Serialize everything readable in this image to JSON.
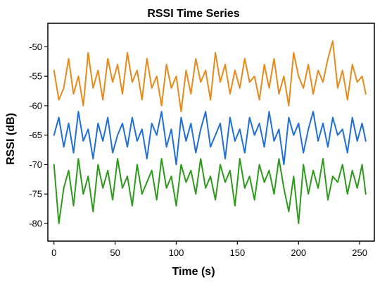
{
  "chart_data": {
    "type": "line",
    "title": "RSSI  Time Series",
    "xlabel": "Time (s)",
    "ylabel": "RSSI  (dB)",
    "xlim": [
      -5,
      262
    ],
    "ylim": [
      -83,
      -46
    ],
    "x_ticks": [
      0,
      50,
      100,
      150,
      200,
      250
    ],
    "y_ticks": [
      -50,
      -55,
      -60,
      -65,
      -70,
      -75,
      -80
    ],
    "grid": false,
    "legend": "none",
    "x": [
      0,
      4,
      8,
      12,
      16,
      20,
      24,
      28,
      32,
      36,
      40,
      44,
      48,
      52,
      56,
      60,
      64,
      68,
      72,
      76,
      80,
      84,
      88,
      92,
      96,
      100,
      104,
      108,
      112,
      116,
      120,
      124,
      128,
      132,
      136,
      140,
      144,
      148,
      152,
      156,
      160,
      164,
      168,
      172,
      176,
      180,
      184,
      188,
      192,
      196,
      200,
      204,
      208,
      212,
      216,
      220,
      224,
      228,
      232,
      236,
      240,
      244,
      248,
      252,
      255
    ],
    "series": [
      {
        "color": "#e8891a",
        "values": [
          -54,
          -59,
          -57,
          -52,
          -58,
          -55,
          -60,
          -51,
          -57,
          -54,
          -59,
          -52,
          -56,
          -53,
          -58,
          -51,
          -56,
          -54,
          -59,
          -52,
          -57,
          -55,
          -60,
          -53,
          -57,
          -55,
          -61,
          -54,
          -58,
          -52,
          -56,
          -54,
          -59,
          -51,
          -56,
          -53,
          -58,
          -54,
          -57,
          -52,
          -56,
          -55,
          -59,
          -53,
          -57,
          -52,
          -58,
          -55,
          -60,
          -51,
          -55,
          -57,
          -53,
          -58,
          -54,
          -56,
          -52,
          -49,
          -57,
          -54,
          -59,
          -53,
          -56,
          -55,
          -58
        ]
      },
      {
        "color": "#1f6fd6",
        "values": [
          -65,
          -62,
          -67,
          -63,
          -68,
          -61,
          -66,
          -64,
          -69,
          -63,
          -66,
          -62,
          -68,
          -65,
          -63,
          -67,
          -62,
          -66,
          -64,
          -69,
          -63,
          -65,
          -61,
          -67,
          -64,
          -70,
          -62,
          -66,
          -63,
          -68,
          -64,
          -61,
          -67,
          -65,
          -63,
          -69,
          -62,
          -66,
          -64,
          -68,
          -62,
          -65,
          -63,
          -67,
          -61,
          -66,
          -64,
          -70,
          -62,
          -65,
          -63,
          -68,
          -64,
          -61,
          -66,
          -63,
          -67,
          -62,
          -65,
          -64,
          -68,
          -62,
          -66,
          -63,
          -66
        ]
      },
      {
        "color": "#2e9a1c",
        "values": [
          -70,
          -80,
          -74,
          -71,
          -77,
          -69,
          -75,
          -72,
          -78,
          -70,
          -74,
          -71,
          -76,
          -69,
          -74,
          -72,
          -77,
          -70,
          -75,
          -73,
          -71,
          -76,
          -69,
          -74,
          -72,
          -77,
          -70,
          -73,
          -71,
          -75,
          -69,
          -74,
          -72,
          -76,
          -70,
          -73,
          -71,
          -77,
          -69,
          -74,
          -72,
          -76,
          -70,
          -73,
          -71,
          -75,
          -69,
          -74,
          -78,
          -72,
          -80,
          -70,
          -75,
          -71,
          -74,
          -69,
          -76,
          -72,
          -73,
          -70,
          -75,
          -71,
          -74,
          -70,
          -75
        ]
      }
    ]
  }
}
